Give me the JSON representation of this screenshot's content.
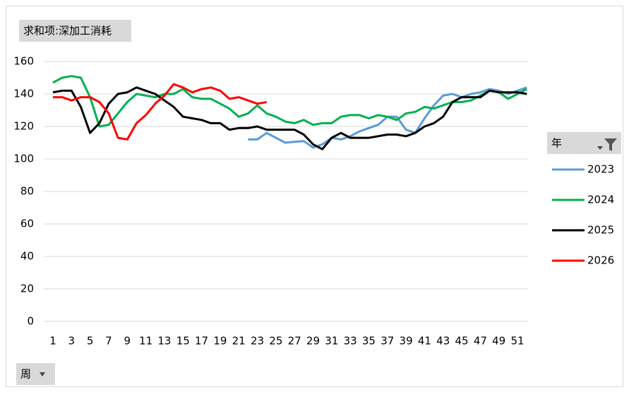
{
  "chart_data": {
    "type": "line",
    "title": "求和项:深加工消耗",
    "legend_title": "年",
    "x_field": "周",
    "categories": [
      1,
      null,
      3,
      null,
      5,
      null,
      7,
      null,
      9,
      null,
      11,
      null,
      13,
      null,
      15,
      null,
      17,
      null,
      19,
      null,
      21,
      null,
      23,
      null,
      25,
      null,
      27,
      null,
      29,
      null,
      31,
      null,
      33,
      null,
      35,
      null,
      37,
      null,
      39,
      null,
      41,
      null,
      43,
      null,
      45,
      null,
      47,
      null,
      49,
      null,
      51,
      null
    ],
    "series": [
      {
        "name": "2023",
        "color": "#5b9bd5",
        "values": [
          null,
          null,
          null,
          null,
          null,
          null,
          null,
          null,
          null,
          null,
          null,
          null,
          null,
          null,
          null,
          null,
          null,
          null,
          null,
          null,
          null,
          112,
          112,
          116,
          113,
          110,
          110.5,
          111,
          107,
          109,
          113,
          112,
          114,
          117,
          119,
          121,
          126,
          126,
          118,
          116,
          125,
          133,
          139,
          140,
          138,
          140,
          141,
          143,
          142,
          140,
          142,
          144
        ]
      },
      {
        "name": "2024",
        "color": "#00b050",
        "values": [
          147,
          150,
          151,
          150,
          138,
          120,
          121,
          128,
          135,
          140,
          139,
          138,
          140,
          140,
          143,
          138,
          137,
          137,
          134,
          131,
          126,
          128,
          133,
          128,
          126,
          123,
          122,
          124,
          121,
          122,
          122,
          126,
          127,
          127,
          125,
          127,
          126,
          124,
          128,
          129,
          132,
          131,
          133,
          135,
          135,
          136,
          139,
          142,
          141,
          137,
          140,
          143
        ]
      },
      {
        "name": "2025",
        "color": "#000000",
        "values": [
          141,
          142,
          142,
          132,
          116,
          122,
          134,
          140,
          141,
          144,
          142,
          140,
          136,
          132,
          126,
          125,
          124,
          122,
          122,
          118,
          119,
          119,
          120,
          118,
          118,
          118,
          118,
          115,
          109,
          106,
          113,
          116,
          113,
          113,
          113,
          114,
          115,
          115,
          114,
          116,
          120,
          122,
          126,
          135,
          138,
          138,
          138,
          142,
          141,
          141,
          141,
          140
        ]
      },
      {
        "name": "2026",
        "color": "#ff0000",
        "values": [
          138,
          138,
          136,
          138,
          138,
          135,
          128,
          113,
          112,
          122,
          127,
          134,
          139,
          146,
          144,
          141,
          143,
          144,
          142,
          137,
          138,
          136,
          134,
          135,
          null,
          null,
          null,
          null,
          null,
          null,
          null,
          null,
          null,
          null,
          null,
          null,
          null,
          null,
          null,
          null,
          null,
          null,
          null,
          null,
          null,
          null,
          null,
          null,
          null,
          null,
          null,
          null
        ]
      }
    ],
    "ylim": [
      0,
      160
    ],
    "yticks": [
      0,
      20,
      40,
      60,
      80,
      100,
      120,
      140,
      160
    ],
    "grid": true
  }
}
